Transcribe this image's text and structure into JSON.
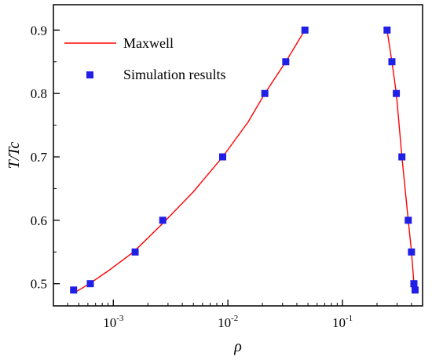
{
  "chart_data": {
    "type": "scatter",
    "title": "",
    "xlabel": "ρ",
    "ylabel": "T/Tc",
    "xscale": "log",
    "xlim": [
      0.0003,
      0.5
    ],
    "ylim": [
      0.465,
      0.94
    ],
    "x_ticks": [
      {
        "value": 0.001,
        "base": "10",
        "exp": "-3"
      },
      {
        "value": 0.01,
        "base": "10",
        "exp": "-2"
      },
      {
        "value": 0.1,
        "base": "10",
        "exp": "-1"
      }
    ],
    "y_ticks": [
      0.5,
      0.6,
      0.7,
      0.8,
      0.9
    ],
    "y_tick_labels": [
      "0.5",
      "0.6",
      "0.7",
      "0.8",
      "0.9"
    ],
    "grid": false,
    "legend_position": "top-left",
    "series": [
      {
        "name": "Maxwell",
        "kind": "line",
        "color": "#ff0000",
        "branches": [
          [
            [
              0.00045,
              0.485
            ],
            [
              0.00062,
              0.5
            ],
            [
              0.0009,
              0.52
            ],
            [
              0.0015,
              0.55
            ],
            [
              0.0027,
              0.595
            ],
            [
              0.005,
              0.645
            ],
            [
              0.009,
              0.7
            ],
            [
              0.015,
              0.755
            ],
            [
              0.021,
              0.8
            ],
            [
              0.032,
              0.85
            ],
            [
              0.047,
              0.9
            ]
          ],
          [
            [
              0.245,
              0.9
            ],
            [
              0.27,
              0.85
            ],
            [
              0.295,
              0.8
            ],
            [
              0.33,
              0.7
            ],
            [
              0.375,
              0.6
            ],
            [
              0.4,
              0.55
            ],
            [
              0.42,
              0.5
            ],
            [
              0.43,
              0.485
            ]
          ]
        ]
      },
      {
        "name": "Simulation results",
        "kind": "scatter",
        "color": "#1f1fe6",
        "marker": "square",
        "points": [
          [
            0.00045,
            0.49
          ],
          [
            0.00063,
            0.5
          ],
          [
            0.00155,
            0.55
          ],
          [
            0.0027,
            0.6
          ],
          [
            0.009,
            0.7
          ],
          [
            0.021,
            0.8
          ],
          [
            0.032,
            0.85
          ],
          [
            0.047,
            0.9
          ],
          [
            0.245,
            0.9
          ],
          [
            0.27,
            0.85
          ],
          [
            0.295,
            0.8
          ],
          [
            0.33,
            0.7
          ],
          [
            0.375,
            0.6
          ],
          [
            0.4,
            0.55
          ],
          [
            0.42,
            0.5
          ],
          [
            0.43,
            0.49
          ]
        ]
      }
    ]
  }
}
